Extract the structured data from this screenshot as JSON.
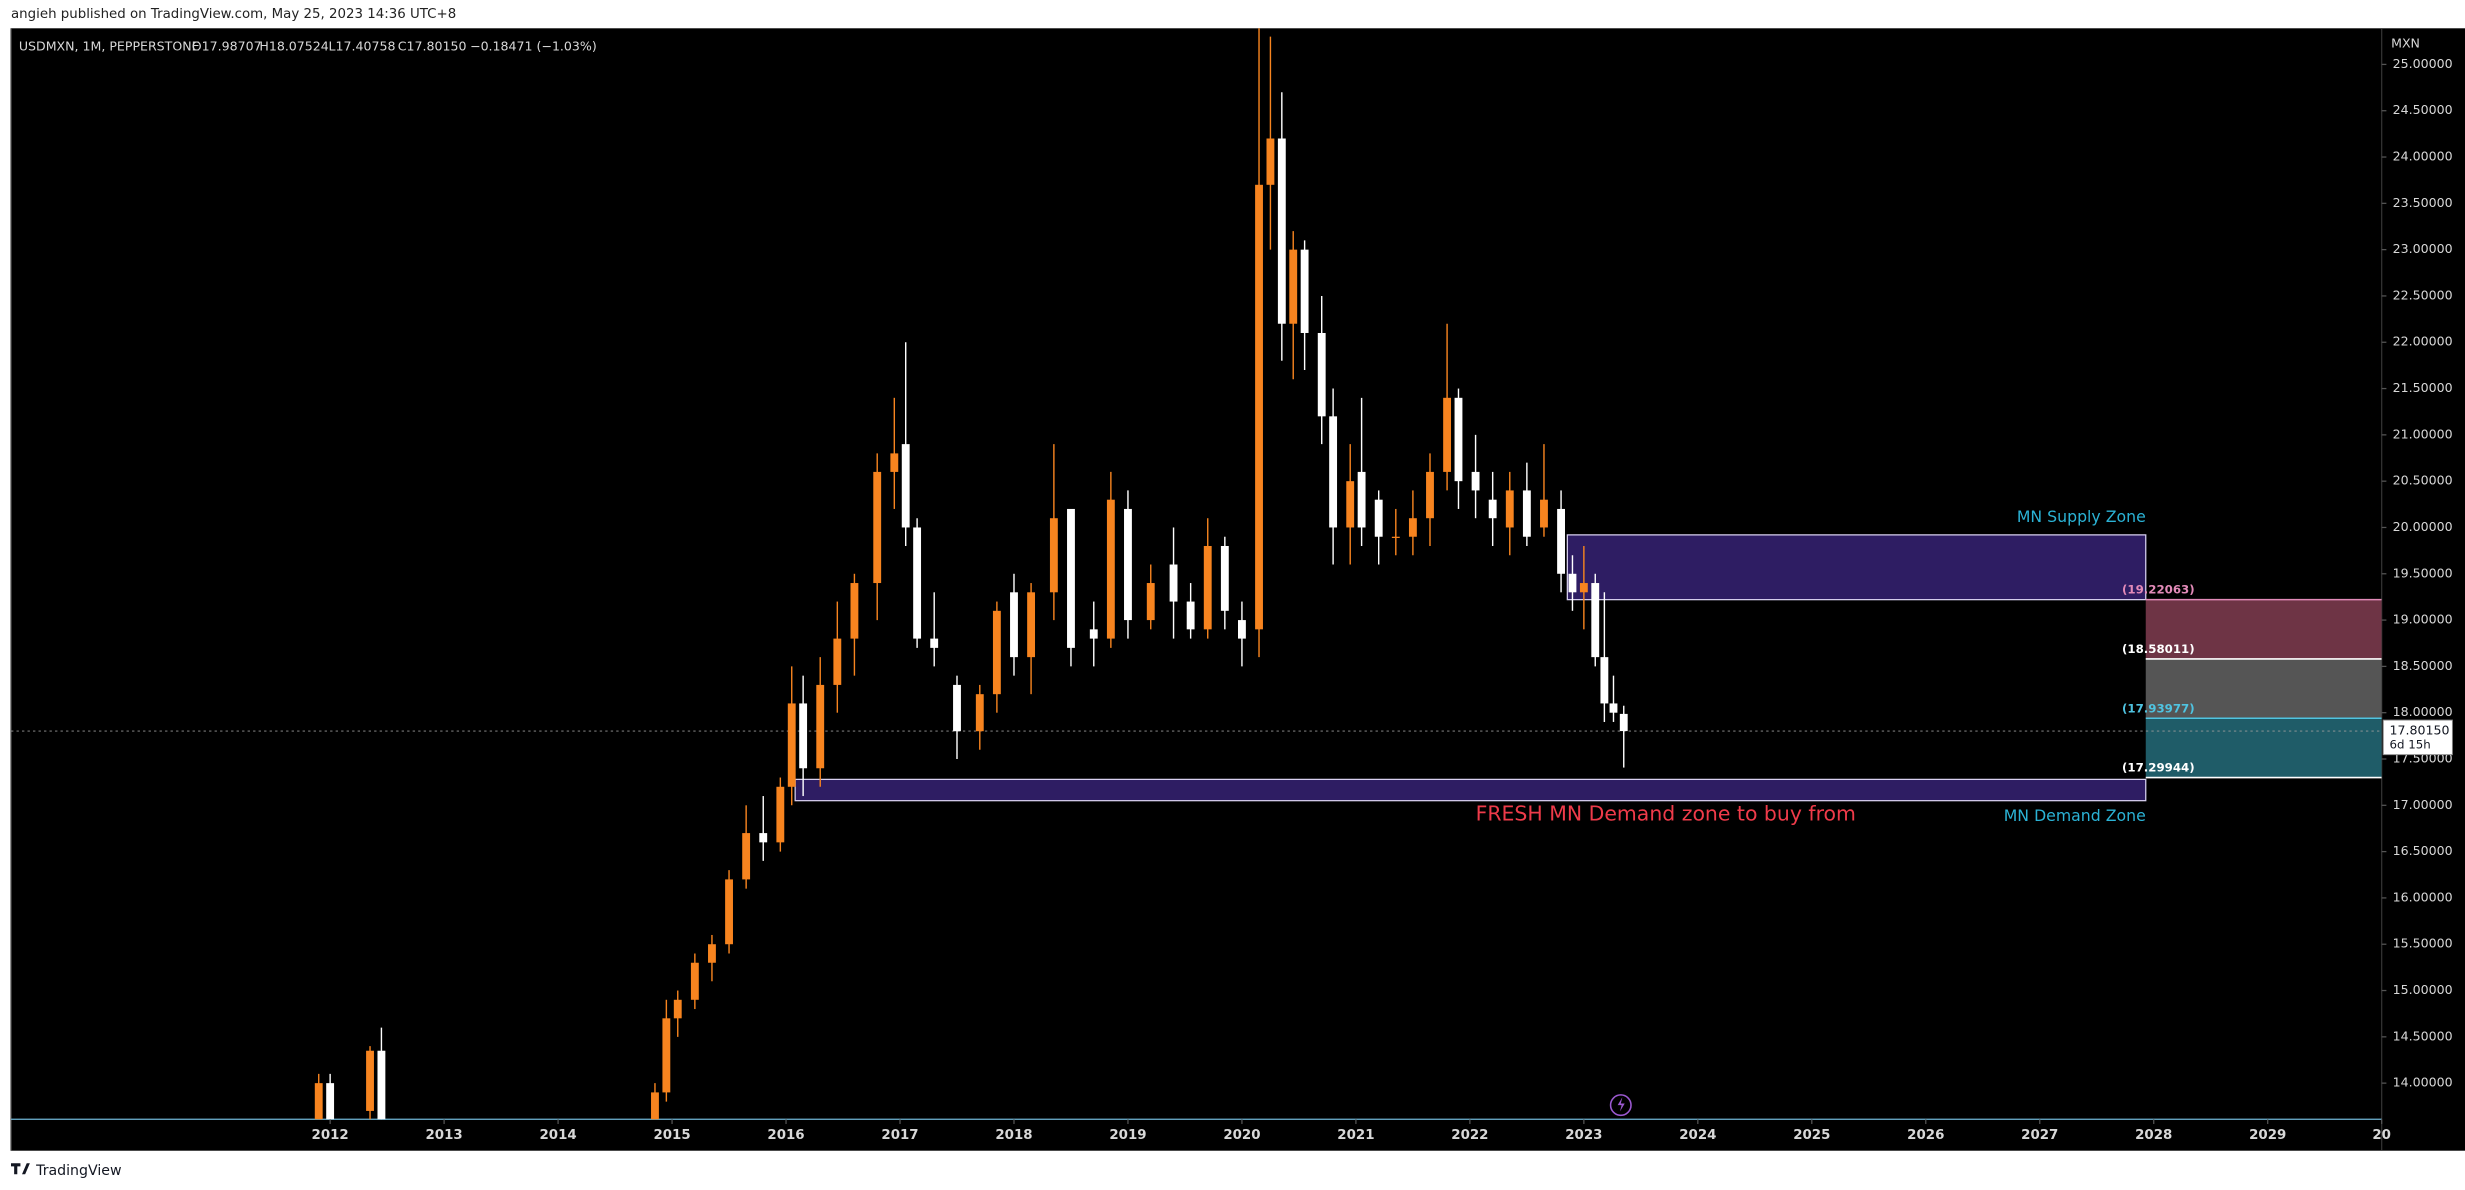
{
  "chart_data": {
    "type": "candlestick",
    "header": "angieh published on TradingView.com, May 25, 2023 14:36 UTC+8",
    "symbol": "USDMXN, 1M, PEPPERSTONE",
    "legend_open": "O17.98707",
    "legend_high": "H18.07524",
    "legend_low": "L17.40758",
    "legend_close": "C17.80150",
    "legend_change": "−0.18471 (−1.03%)",
    "currency": "MXN",
    "footer": "TradingView",
    "up_color": "#f7841f",
    "down_color": "#ffffff",
    "x": [
      2011.9,
      2012.0,
      2012.35,
      2012.45,
      2014.85,
      2014.95,
      2015.05,
      2015.2,
      2015.35,
      2015.5,
      2015.65,
      2015.8,
      2015.95,
      2016.05,
      2016.15,
      2016.3,
      2016.45,
      2016.6,
      2016.8,
      2016.95,
      2017.05,
      2017.15,
      2017.3,
      2017.5,
      2017.7,
      2017.85,
      2018.0,
      2018.15,
      2018.35,
      2018.5,
      2018.7,
      2018.85,
      2019.0,
      2019.2,
      2019.4,
      2019.55,
      2019.7,
      2019.85,
      2020.0,
      2020.15,
      2020.25,
      2020.35,
      2020.45,
      2020.55,
      2020.7,
      2020.8,
      2020.95,
      2021.05,
      2021.2,
      2021.35,
      2021.5,
      2021.65,
      2021.8,
      2021.9,
      2022.05,
      2022.2,
      2022.35,
      2022.5,
      2022.65,
      2022.8,
      2022.9,
      2023.0,
      2023.1,
      2023.18,
      2023.26,
      2023.35
    ],
    "open": [
      13.5,
      14.0,
      13.7,
      14.35,
      13.5,
      13.9,
      14.7,
      14.9,
      15.3,
      15.5,
      16.2,
      16.7,
      16.6,
      17.2,
      18.1,
      17.4,
      18.3,
      18.8,
      19.4,
      20.6,
      20.9,
      20.0,
      18.8,
      18.3,
      17.8,
      18.2,
      19.3,
      18.6,
      19.3,
      20.2,
      18.9,
      18.8,
      20.2,
      19.0,
      19.6,
      19.2,
      18.9,
      19.8,
      19.0,
      18.9,
      23.7,
      24.2,
      22.2,
      23.0,
      22.1,
      21.2,
      20.0,
      20.6,
      20.3,
      19.9,
      19.9,
      20.1,
      20.6,
      21.4,
      20.6,
      20.3,
      20.0,
      20.4,
      20.0,
      20.2,
      19.5,
      19.3,
      19.4,
      18.6,
      18.1,
      17.98707
    ],
    "high": [
      14.1,
      14.1,
      14.4,
      14.6,
      14.0,
      14.9,
      15.0,
      15.4,
      15.6,
      16.3,
      17.0,
      17.1,
      17.3,
      18.5,
      18.4,
      18.6,
      19.2,
      19.5,
      20.8,
      21.4,
      22.0,
      20.1,
      19.3,
      18.4,
      18.3,
      19.2,
      19.5,
      19.4,
      20.9,
      20.2,
      19.2,
      20.6,
      20.4,
      19.6,
      20.0,
      19.4,
      20.1,
      19.9,
      19.2,
      25.4,
      25.3,
      24.7,
      23.2,
      23.1,
      22.5,
      21.5,
      20.9,
      21.4,
      20.4,
      20.2,
      20.4,
      20.8,
      22.2,
      21.5,
      21.0,
      20.6,
      20.6,
      20.7,
      20.9,
      20.4,
      19.7,
      19.8,
      19.5,
      19.3,
      18.4,
      18.07524
    ],
    "low": [
      13.4,
      13.5,
      13.5,
      13.5,
      13.4,
      13.8,
      14.5,
      14.8,
      15.1,
      15.4,
      16.1,
      16.4,
      16.5,
      17.0,
      17.1,
      17.2,
      18.0,
      18.4,
      19.0,
      20.2,
      19.8,
      18.7,
      18.5,
      17.5,
      17.6,
      18.0,
      18.4,
      18.2,
      19.0,
      18.5,
      18.5,
      18.7,
      18.8,
      18.9,
      18.8,
      18.8,
      18.8,
      18.9,
      18.5,
      18.6,
      23.0,
      21.8,
      21.6,
      21.7,
      20.9,
      19.6,
      19.6,
      19.8,
      19.6,
      19.7,
      19.7,
      19.8,
      20.4,
      20.2,
      20.1,
      19.8,
      19.7,
      19.8,
      19.9,
      19.3,
      19.1,
      18.9,
      18.5,
      17.9,
      17.9,
      17.40758
    ],
    "close": [
      14.0,
      13.6,
      14.35,
      13.6,
      13.9,
      14.7,
      14.9,
      15.3,
      15.5,
      16.2,
      16.7,
      16.6,
      17.2,
      18.1,
      17.4,
      18.3,
      18.8,
      19.4,
      20.6,
      20.8,
      20.0,
      18.8,
      18.7,
      17.8,
      18.2,
      19.1,
      18.6,
      19.3,
      20.1,
      18.7,
      18.8,
      20.3,
      19.0,
      19.4,
      19.2,
      18.9,
      19.8,
      19.1,
      18.8,
      23.7,
      24.2,
      22.2,
      23.0,
      22.1,
      21.2,
      20.0,
      20.5,
      20.0,
      19.9,
      19.9,
      20.1,
      20.6,
      21.4,
      20.5,
      20.4,
      20.1,
      20.4,
      19.9,
      20.3,
      19.5,
      19.3,
      19.4,
      18.6,
      18.1,
      18.0,
      17.8015
    ],
    "xlim": [
      2009.2,
      2030.0
    ],
    "xticks": [
      2012,
      2013,
      2014,
      2015,
      2016,
      2017,
      2018,
      2019,
      2020,
      2021,
      2022,
      2023,
      2024,
      2025,
      2026,
      2027,
      2028,
      2029,
      {
        "value": 2030,
        "label": "20"
      }
    ],
    "ylim": [
      13.61,
      25.39
    ],
    "yticks": [
      {
        "value": 14,
        "label": "14.00000"
      },
      {
        "value": 14.5,
        "label": "14.50000"
      },
      {
        "value": 15,
        "label": "15.00000"
      },
      {
        "value": 15.5,
        "label": "15.50000"
      },
      {
        "value": 16,
        "label": "16.00000"
      },
      {
        "value": 16.5,
        "label": "16.50000"
      },
      {
        "value": 17,
        "label": "17.00000"
      },
      {
        "value": 17.5,
        "label": "17.50000"
      },
      {
        "value": 18,
        "label": "18.00000"
      },
      {
        "value": 18.5,
        "label": "18.50000"
      },
      {
        "value": 19,
        "label": "19.00000"
      },
      {
        "value": 19.5,
        "label": "19.50000"
      },
      {
        "value": 20,
        "label": "20.00000"
      },
      {
        "value": 20.5,
        "label": "20.50000"
      },
      {
        "value": 21,
        "label": "21.00000"
      },
      {
        "value": 21.5,
        "label": "21.50000"
      },
      {
        "value": 22,
        "label": "22.00000"
      },
      {
        "value": 22.5,
        "label": "22.50000"
      },
      {
        "value": 23,
        "label": "23.00000"
      },
      {
        "value": 23.5,
        "label": "23.50000"
      },
      {
        "value": 24,
        "label": "24.00000"
      },
      {
        "value": 24.5,
        "label": "24.50000"
      },
      {
        "value": 25,
        "label": "25.00000"
      }
    ],
    "zones": [
      {
        "label": "MN Supply Zone",
        "x": [
          2022.855,
          2027.93
        ],
        "y": [
          19.22063,
          19.92
        ],
        "color": "#2e1d63",
        "label_pos": "above"
      },
      {
        "label": "MN Demand Zone",
        "x": [
          2016.08,
          2027.93
        ],
        "y": [
          17.05,
          17.28
        ],
        "color": "#2e1d63",
        "label_pos": "below"
      }
    ],
    "zone_label_color": "#2bb3d6",
    "levels": [
      {
        "value": 19.22063,
        "label": "(19.22063)",
        "color": "#e28ab8"
      },
      {
        "value": 18.58011,
        "label": "(18.58011)",
        "color": "#ffffff"
      },
      {
        "value": 17.93977,
        "label": "(17.93977)",
        "color": "#4fc3e0"
      },
      {
        "value": 17.29944,
        "label": "(17.29944)",
        "color": "#ffffff"
      }
    ],
    "range_x": [
      2027.93,
      2030.0
    ],
    "range_colors": [
      "#6e3445",
      "#555555",
      "#1f5c68"
    ],
    "last_price": {
      "value": 17.8015,
      "label": "17.80150"
    },
    "countdown": "6d 15h",
    "annotation": {
      "text": "FRESH MN Demand zone to buy from",
      "x": 2022.05,
      "y": 16.9,
      "color": "#ef3b4a"
    }
  }
}
